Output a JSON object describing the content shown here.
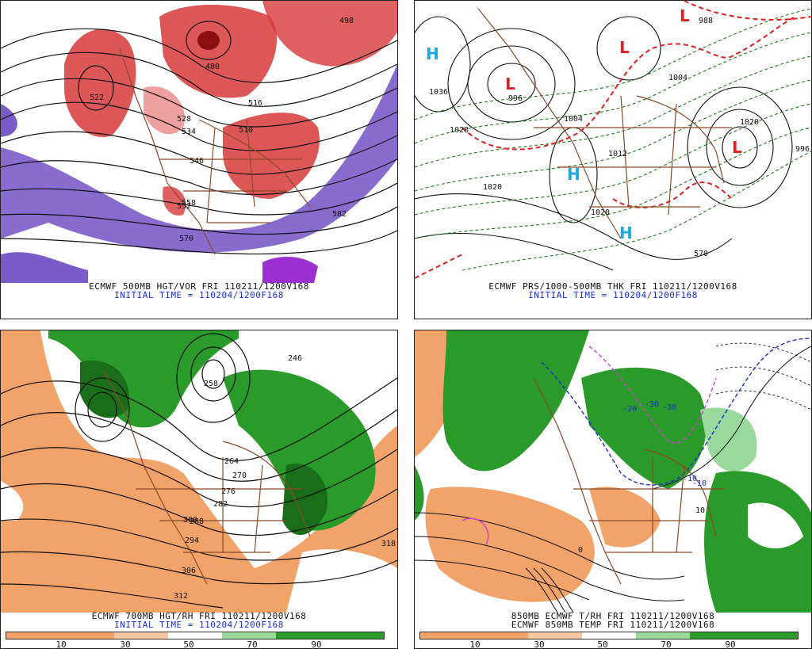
{
  "panels": [
    {
      "caption": "ECMWF 500MB HGT/VOR FRI 110211/1200V168",
      "subcaption": "INITIAL TIME = 110204/1200F168",
      "labels": [
        "522",
        "528",
        "534",
        "546",
        "552",
        "558",
        "570",
        "582",
        "498",
        "480",
        "510",
        "516"
      ]
    },
    {
      "caption": "ECMWF PRS/1000-500MB THK FRI 110211/1200V168",
      "subcaption": "INITIAL TIME = 110204/1200F168",
      "labels": [
        "1036",
        "1020",
        "1028",
        "996",
        "1004",
        "1012",
        "1020",
        "1004",
        "1020",
        "570",
        "988",
        "996"
      ]
    },
    {
      "caption": "ECMWF 700MB HGT/RH FRI 110211/1200V168",
      "subcaption": "INITIAL TIME = 110204/1200F168",
      "labels": [
        "264",
        "270",
        "276",
        "282",
        "288",
        "294",
        "300",
        "306",
        "312",
        "318",
        "258",
        "246"
      ],
      "colorbar_ticks": [
        "10",
        "30",
        "50",
        "70",
        "90"
      ]
    },
    {
      "caption": "850MB ECMWF T/RH FRI 110211/1200V168",
      "subcaption": "ECMWF 850MB TEMP FRI 110211/1200V168",
      "labels": [
        "-20",
        "-10",
        "0",
        "-10",
        "-30",
        "-30",
        "10"
      ],
      "colorbar_ticks": [
        "10",
        "30",
        "50",
        "70",
        "90"
      ]
    }
  ],
  "pressure_centers": [
    "H",
    "L",
    "L",
    "L",
    "H",
    "H",
    "L",
    "L"
  ],
  "colors": {
    "vorticity_red": "#d83a3a",
    "vorticity_pink": "#f0a0a0",
    "vorticity_purple": "#7a5cc8",
    "rh_orange": "#f2a36a",
    "rh_green": "#2a9a2a",
    "rh_dark_green": "#1a6e1a",
    "map_brown": "#8b4a28",
    "thickness_green": "#1e7a1e",
    "thickness_red": "#e02020",
    "freezing_blue": "#1a2fd0",
    "magenta": "#d040d0",
    "caption_blue": "#1a2fd0"
  }
}
